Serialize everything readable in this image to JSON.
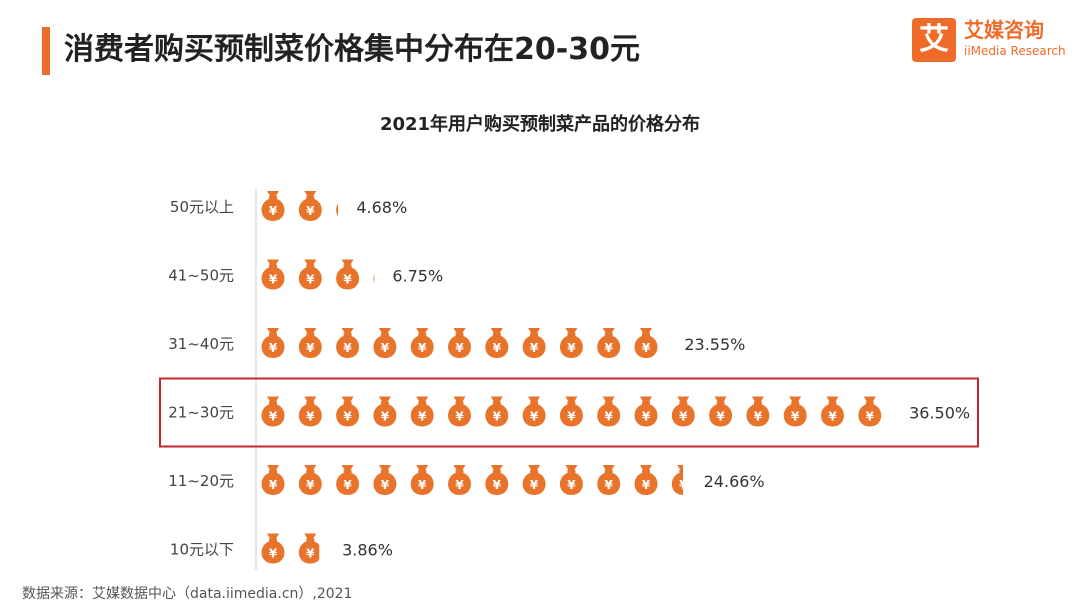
{
  "header": {
    "title": "消费者购买预制菜价格集中分布在20-30元",
    "accent_color": "#ee6b2a"
  },
  "logo": {
    "mark": "艾",
    "name_cn": "艾媒咨询",
    "name_en": "iiMedia Research"
  },
  "chart_data": {
    "type": "bar",
    "title": "2021年用户购买预制菜产品的价格分布",
    "categories": [
      "50元以上",
      "41~50元",
      "31~40元",
      "21~30元",
      "11~20元",
      "10元以下"
    ],
    "values": [
      4.68,
      6.75,
      23.55,
      36.5,
      24.66,
      3.86
    ],
    "value_labels": [
      "4.68%",
      "6.75%",
      "23.55%",
      "36.50%",
      "24.66%",
      "3.86%"
    ],
    "marker": "money-bag-icon",
    "marker_glyph": "¥",
    "marker_color": "#e8742c",
    "highlight_category": "21~30元",
    "highlight_color": "#c0282d",
    "xlabel": "",
    "ylabel": ""
  },
  "footer": {
    "source": "数据来源：艾媒数据中心（data.iimedia.cn）,2021"
  }
}
